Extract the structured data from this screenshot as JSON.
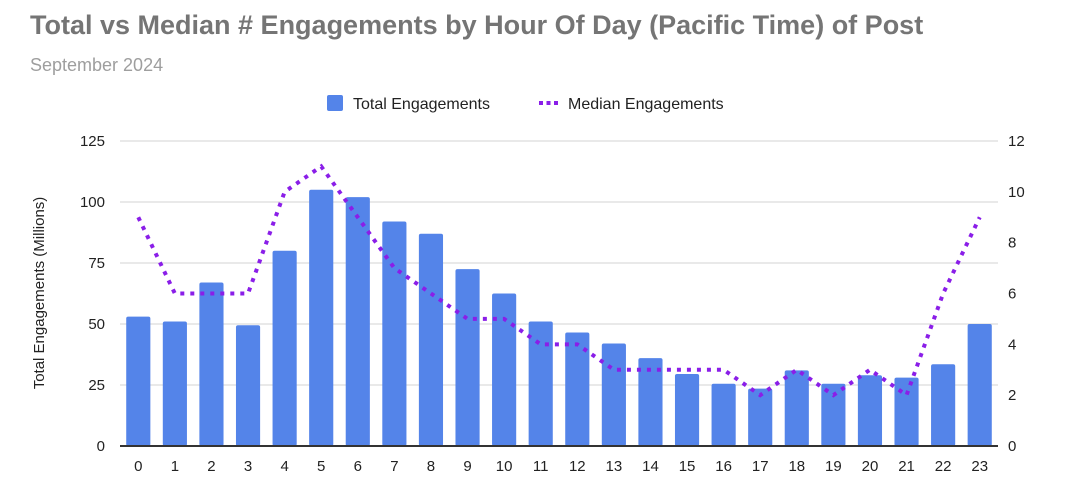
{
  "chart_data": {
    "type": "bar+line",
    "title": "Total vs Median # Engagements by Hour Of Day (Pacific Time) of Post",
    "subtitle": "September 2024",
    "xlabel": "",
    "ylabel": "Total Engagements (Millions)",
    "ylabel_right": "",
    "categories": [
      "0",
      "1",
      "2",
      "3",
      "4",
      "5",
      "6",
      "7",
      "8",
      "9",
      "10",
      "11",
      "12",
      "13",
      "14",
      "15",
      "16",
      "17",
      "18",
      "19",
      "20",
      "21",
      "22",
      "23"
    ],
    "ylim": [
      0,
      125
    ],
    "yticks": [
      0,
      25,
      50,
      75,
      100,
      125
    ],
    "ylim_right": [
      0,
      12
    ],
    "yticks_right": [
      0,
      2,
      4,
      6,
      8,
      10,
      12
    ],
    "grid": true,
    "legend": "top",
    "series": [
      {
        "name": "Total Engagements",
        "type": "bar",
        "axis": "left",
        "color": "#5484e9",
        "values": [
          53,
          51,
          67,
          49.5,
          80,
          105,
          102,
          92,
          87,
          72.5,
          62.5,
          51,
          46.5,
          42,
          36,
          29.5,
          25.5,
          23.5,
          31,
          25.5,
          29,
          28,
          33.5,
          50
        ]
      },
      {
        "name": "Median Engagements",
        "type": "line",
        "style": "dotted",
        "axis": "right",
        "color": "#8a1ee8",
        "values": [
          9,
          6,
          6,
          6,
          10,
          11,
          9,
          7,
          6,
          5,
          5,
          4,
          4,
          3,
          3,
          3,
          3,
          2,
          3,
          2,
          3,
          2,
          6,
          9
        ]
      }
    ]
  }
}
